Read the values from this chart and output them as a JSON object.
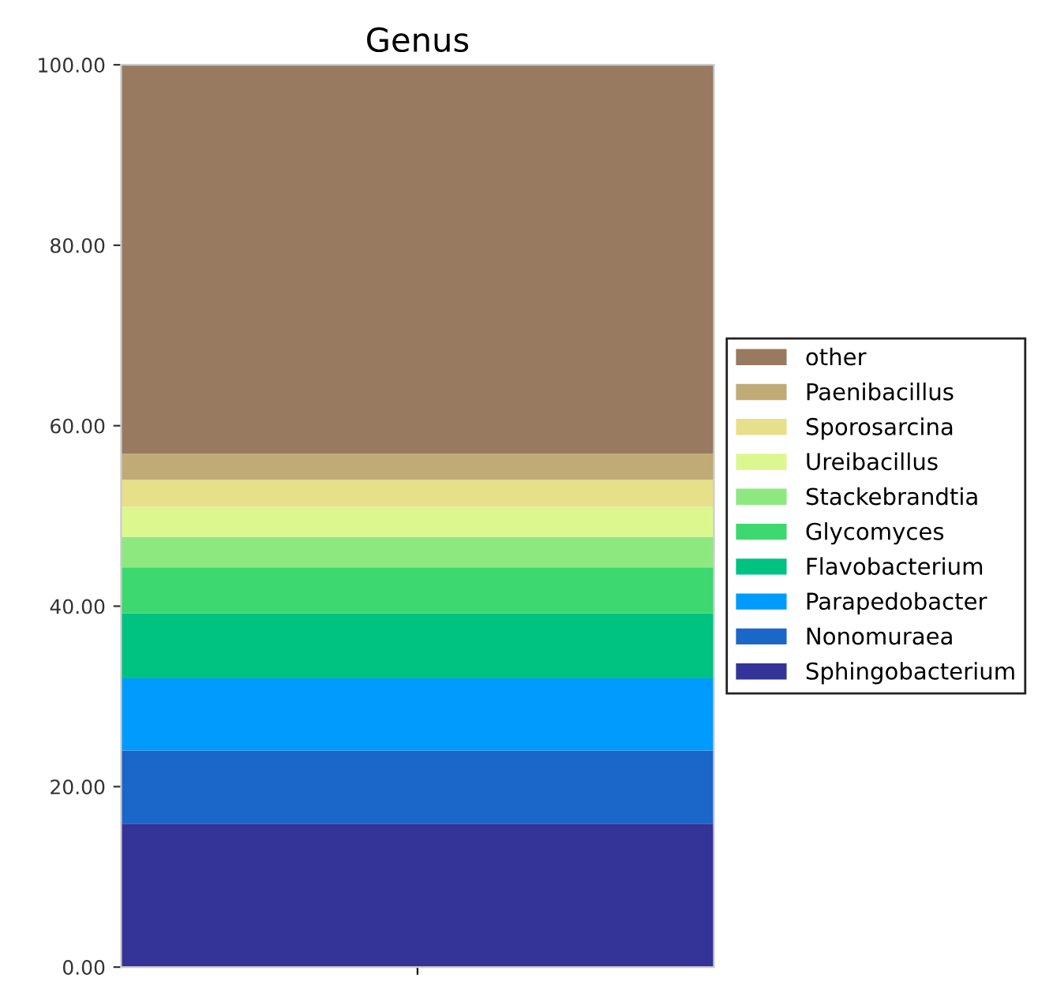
{
  "chart_data": {
    "type": "bar",
    "title": "Genus",
    "categories": [
      null
    ],
    "stacked": true,
    "series": [
      {
        "name": "Sphingobacterium",
        "color": "#343397",
        "values": [
          15.9
        ]
      },
      {
        "name": "Nonomuraea",
        "color": "#1b66c9",
        "values": [
          8.1
        ]
      },
      {
        "name": "Parapedobacter",
        "color": "#019bfd",
        "values": [
          8.0
        ]
      },
      {
        "name": "Flavobacterium",
        "color": "#00c281",
        "values": [
          7.2
        ]
      },
      {
        "name": "Glycomyces",
        "color": "#3dd970",
        "values": [
          5.1
        ]
      },
      {
        "name": "Stackebrandtia",
        "color": "#8de97f",
        "values": [
          3.4
        ]
      },
      {
        "name": "Ureibacillus",
        "color": "#ddf78f",
        "values": [
          3.3
        ]
      },
      {
        "name": "Sporosarcina",
        "color": "#e7e08a",
        "values": [
          3.0
        ]
      },
      {
        "name": "Paenibacillus",
        "color": "#c0ab76",
        "values": [
          2.9
        ]
      },
      {
        "name": "other",
        "color": "#977a5f",
        "values": [
          43.1
        ]
      }
    ],
    "ylim": [
      0,
      100
    ],
    "yticks": [
      {
        "value": 0,
        "label": "0.00"
      },
      {
        "value": 20,
        "label": "20.00"
      },
      {
        "value": 40,
        "label": "40.00"
      },
      {
        "value": 60,
        "label": "60.00"
      },
      {
        "value": 80,
        "label": "80.00"
      },
      {
        "value": 100,
        "label": "100.00"
      }
    ],
    "tick_labels": "y",
    "legend": "right",
    "grid": false
  }
}
